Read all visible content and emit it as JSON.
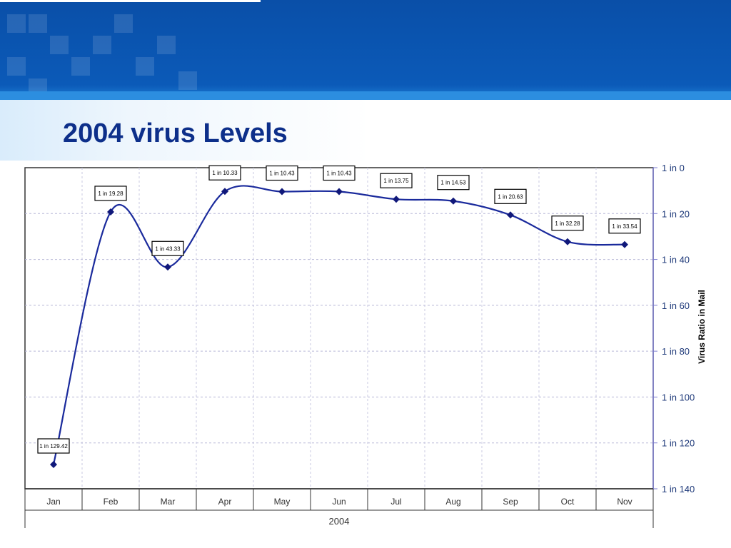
{
  "slide": {
    "title": "2004 virus Levels",
    "colors": {
      "banner": "#0b55b3",
      "title": "#0d2f8a",
      "series": "#1a2a9c"
    }
  },
  "chart_data": {
    "type": "line",
    "categories": [
      "Jan",
      "Feb",
      "Mar",
      "Apr",
      "May",
      "Jun",
      "Jul",
      "Aug",
      "Sep",
      "Oct",
      "Nov"
    ],
    "values": [
      129.42,
      19.28,
      43.33,
      10.33,
      10.43,
      10.43,
      13.75,
      14.53,
      20.63,
      32.28,
      33.54
    ],
    "data_labels": [
      "1 in 129.42",
      "1 in 19.28",
      "1 in 43.33",
      "1 in 10.33",
      "1 in 10.43",
      "1 in 10.43",
      "1 in 13.75",
      "1 in 14.53",
      "1 in 20.63",
      "1 in 32.28",
      "1 in 33.54"
    ],
    "y_ticks": [
      "1 in 0",
      "1 in 20",
      "1 in 40",
      "1 in 60",
      "1 in 80",
      "1 in 100",
      "1 in 120",
      "1 in 140"
    ],
    "y_tick_values": [
      0,
      20,
      40,
      60,
      80,
      100,
      120,
      140
    ],
    "ylim": [
      0,
      140
    ],
    "y_inverted": true,
    "y_axis_side": "right",
    "ylabel": "Virus Ratio in Mail",
    "xlabel": "2004",
    "grid": true
  }
}
